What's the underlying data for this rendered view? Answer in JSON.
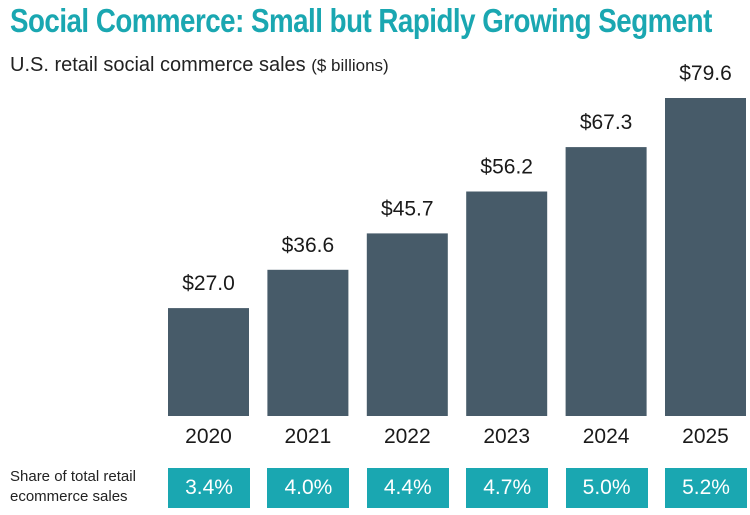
{
  "title": "Social Commerce: Small but Rapidly Growing Segment",
  "subtitle": "U.S. retail social commerce sales",
  "subtitle_unit": "($ billions)",
  "share_label_line1": "Share of total retail",
  "share_label_line2": "ecommerce sales",
  "colors": {
    "bar": "#475b69",
    "accent": "#1aa7b1"
  },
  "chart_data": {
    "type": "bar",
    "title": "Social Commerce: Small but Rapidly Growing Segment",
    "subtitle": "U.S. retail social commerce sales ($ billions)",
    "xlabel": "",
    "ylabel": "",
    "ylim": [
      0,
      80
    ],
    "categories": [
      "2020",
      "2021",
      "2022",
      "2023",
      "2024",
      "2025"
    ],
    "values": [
      27.0,
      36.6,
      45.7,
      56.2,
      67.3,
      79.6
    ],
    "value_labels": [
      "$27.0",
      "$36.6",
      "$45.7",
      "$56.2",
      "$67.3",
      "$79.6"
    ],
    "share_of_ecommerce": [
      "3.4%",
      "4.0%",
      "4.4%",
      "4.7%",
      "5.0%",
      "5.2%"
    ]
  }
}
